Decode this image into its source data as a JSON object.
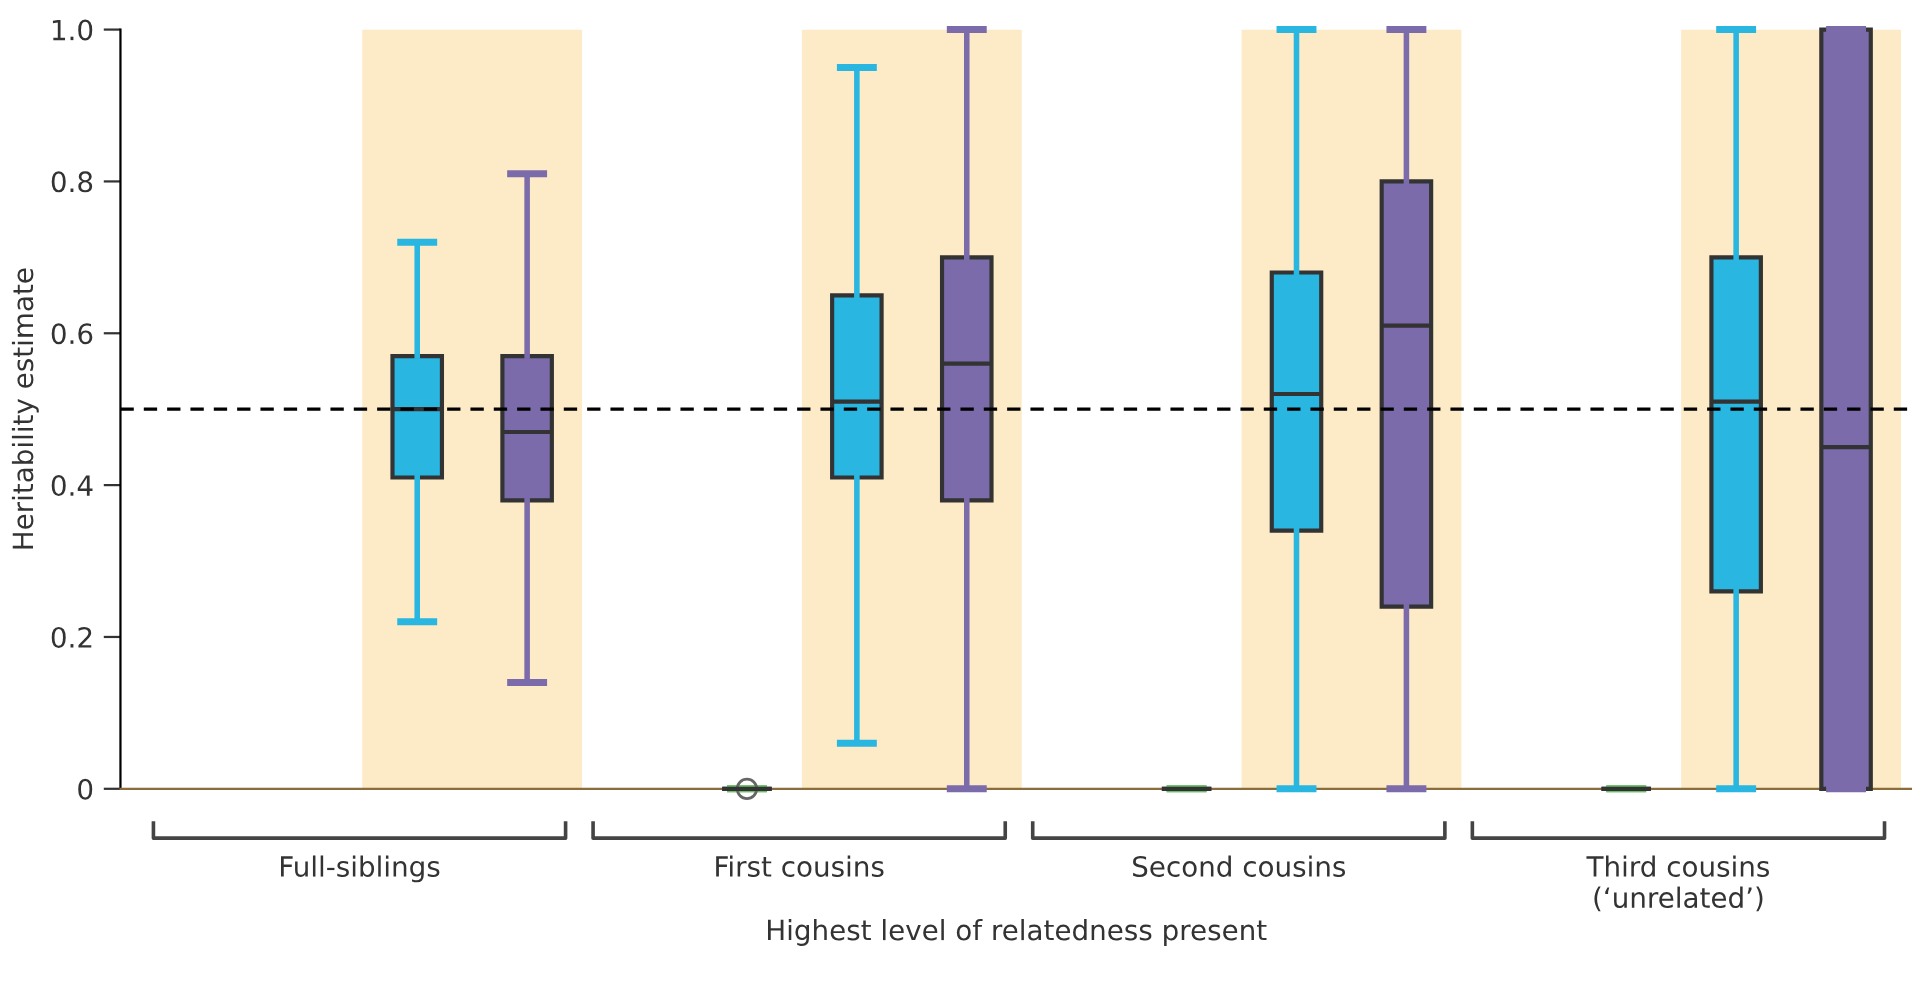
{
  "chart_data": {
    "type": "box",
    "xlabel": "Highest level of relatedness present",
    "ylabel": "Heritability estimate",
    "categories": [
      "Full-siblings",
      "First cousins",
      "Second cousins",
      "Third cousins\n(‘unrelated’)"
    ],
    "ylim": [
      0,
      1.0
    ],
    "yticks": [
      0,
      0.2,
      0.4,
      0.6,
      0.8,
      {
        "value": 1.0,
        "label": "1.0"
      }
    ],
    "grid": false,
    "legend": false,
    "series": [
      {
        "color": "#6abf69",
        "boxes": [
          null,
          {
            "low": 0,
            "q1": 0,
            "median": 0,
            "q3": 0,
            "high": 0,
            "outliers": [
              0
            ]
          },
          {
            "low": 0,
            "q1": 0,
            "median": 0,
            "q3": 0,
            "high": 0
          },
          {
            "low": 0,
            "q1": 0,
            "median": 0,
            "q3": 0,
            "high": 0
          }
        ]
      },
      {
        "color": "#29b6e0",
        "boxes": [
          {
            "low": 0.22,
            "q1": 0.41,
            "median": 0.5,
            "q3": 0.57,
            "high": 0.72
          },
          {
            "low": 0.06,
            "q1": 0.41,
            "median": 0.51,
            "q3": 0.65,
            "high": 0.95
          },
          {
            "low": 0,
            "q1": 0.34,
            "median": 0.52,
            "q3": 0.68,
            "high": 1.0
          },
          {
            "low": 0,
            "q1": 0.26,
            "median": 0.51,
            "q3": 0.7,
            "high": 1.0
          }
        ]
      },
      {
        "color": "#7b6bab",
        "boxes": [
          {
            "low": 0.14,
            "q1": 0.38,
            "median": 0.47,
            "q3": 0.57,
            "high": 0.81
          },
          {
            "low": 0,
            "q1": 0.38,
            "median": 0.56,
            "q3": 0.7,
            "high": 1.0
          },
          {
            "low": 0,
            "q1": 0.24,
            "median": 0.61,
            "q3": 0.8,
            "high": 1.0
          },
          {
            "low": 0,
            "q1": 0,
            "median": 0.45,
            "q3": 1.0,
            "high": 1.0
          }
        ]
      }
    ],
    "bands": [
      {
        "axis": "x",
        "from": "Full-siblings",
        "to": "Full-siblings",
        "color": "#fdebc8"
      },
      {
        "axis": "x",
        "from": "First cousins",
        "to": "First cousins",
        "color": "#fdebc8"
      },
      {
        "axis": "x",
        "from": "Second cousins",
        "to": "Second cousins",
        "color": "#fdebc8"
      },
      {
        "axis": "x",
        "from": "Third cousins\n(‘unrelated’)",
        "to": "Third cousins\n(‘unrelated’)",
        "color": "#fdebc8"
      }
    ],
    "ref_lines": [
      {
        "axis": "y",
        "value": 0.5,
        "line_style": "dashed",
        "color": "#000000"
      }
    ]
  }
}
